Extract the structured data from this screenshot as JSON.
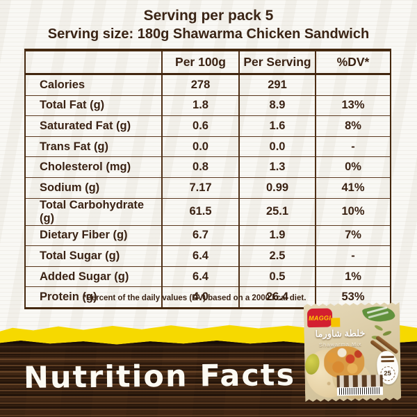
{
  "header": {
    "line1": "Serving per pack 5",
    "line2": "Serving size: 180g Shawarma Chicken Sandwich"
  },
  "table": {
    "columns": [
      "",
      "Per 100g",
      "Per Serving",
      "%DV*"
    ],
    "rows": [
      {
        "label": "Calories",
        "per100g": "278",
        "serving": "291",
        "dv": ""
      },
      {
        "label": "Total Fat (g)",
        "per100g": "1.8",
        "serving": "8.9",
        "dv": "13%"
      },
      {
        "label": "Saturated Fat (g)",
        "per100g": "0.6",
        "serving": "1.6",
        "dv": "8%"
      },
      {
        "label": "Trans Fat (g)",
        "per100g": "0.0",
        "serving": "0.0",
        "dv": "-"
      },
      {
        "label": "Cholesterol (mg)",
        "per100g": "0.8",
        "serving": "1.3",
        "dv": "0%"
      },
      {
        "label": "Sodium (g)",
        "per100g": "7.17",
        "serving": "0.99",
        "dv": "41%"
      },
      {
        "label": "Total Carbohydrate (g)",
        "per100g": "61.5",
        "serving": "25.1",
        "dv": "10%"
      },
      {
        "label": "Dietary Fiber (g)",
        "per100g": "6.7",
        "serving": "1.9",
        "dv": "7%"
      },
      {
        "label": "Total Sugar (g)",
        "per100g": "6.4",
        "serving": "2.5",
        "dv": "-"
      },
      {
        "label": "Added Sugar (g)",
        "per100g": "6.4",
        "serving": "0.5",
        "dv": "1%"
      },
      {
        "label": "Protein (g)",
        "per100g": "4.0",
        "serving": "26.4",
        "dv": "53%"
      }
    ],
    "footnote": "*Percent of the daily values (DV) based on a 2000 kcal diet."
  },
  "banner": {
    "title": "Nutrition Facts"
  },
  "package": {
    "brand": "MAGGI",
    "name_ar": "خلطة شاورما",
    "name_en": "Shawarma Mix",
    "count": "25"
  },
  "colors": {
    "text_brown": "#3A2213",
    "border_brown": "#44280F",
    "accent_yellow": "#F6D900",
    "wood_brown": "#2B180B",
    "maggi_red": "#D31F2F",
    "package_beige": "#D8C8A2"
  }
}
